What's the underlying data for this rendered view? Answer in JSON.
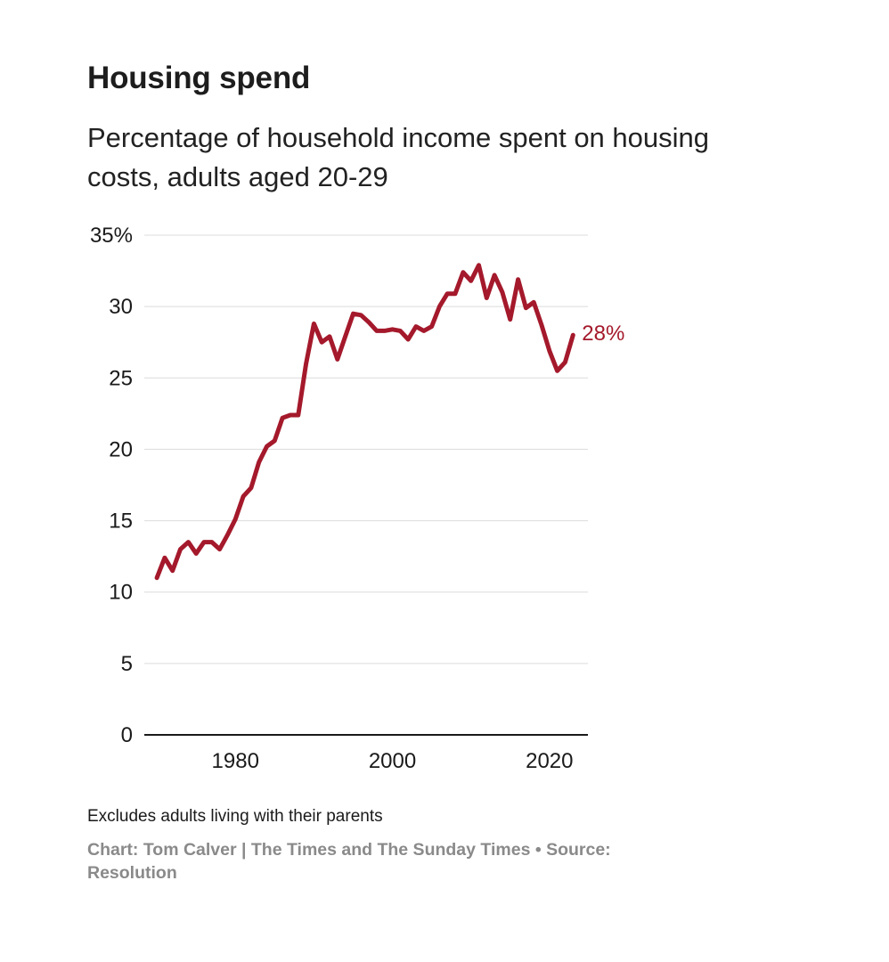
{
  "header": {
    "title": "Housing spend",
    "subtitle": "Percentage of household income spent on housing costs, adults aged 20-29"
  },
  "footer": {
    "note": "Excludes adults living with their parents",
    "credit": "Chart: Tom Calver | The Times and The Sunday Times • Source: Resolution"
  },
  "chart_data": {
    "type": "line",
    "title": "Housing spend",
    "subtitle": "Percentage of household income spent on housing costs, adults aged 20-29",
    "xlabel": "",
    "ylabel": "",
    "xlim": [
      1968.4,
      2024.9
    ],
    "ylim": [
      0,
      35
    ],
    "x_ticks": [
      1980,
      2000,
      2020
    ],
    "x_tick_labels": [
      "1980",
      "2000",
      "2020"
    ],
    "y_ticks": [
      0,
      5,
      10,
      15,
      20,
      25,
      30,
      35
    ],
    "y_tick_labels": [
      "0",
      "5",
      "10",
      "15",
      "20",
      "25",
      "30",
      "35%"
    ],
    "grid": true,
    "line_color": "#a4192b",
    "end_label": "28%",
    "series": [
      {
        "name": "Housing costs share of income, adults aged 20-29",
        "x": [
          1970,
          1971,
          1972,
          1973,
          1974,
          1975,
          1976,
          1977,
          1978,
          1979,
          1980,
          1981,
          1982,
          1983,
          1984,
          1985,
          1986,
          1987,
          1988,
          1989,
          1990,
          1991,
          1992,
          1993,
          1994,
          1995,
          1996,
          1997,
          1998,
          1999,
          2000,
          2001,
          2002,
          2003,
          2004,
          2005,
          2006,
          2007,
          2008,
          2009,
          2010,
          2011,
          2012,
          2013,
          2014,
          2015,
          2016,
          2017,
          2018,
          2019,
          2020,
          2021,
          2022,
          2023
        ],
        "values": [
          11.0,
          12.4,
          11.5,
          13.0,
          13.5,
          12.7,
          13.5,
          13.5,
          13.0,
          14.0,
          15.1,
          16.7,
          17.3,
          19.1,
          20.2,
          20.6,
          22.2,
          22.4,
          22.4,
          26.0,
          28.8,
          27.5,
          27.9,
          26.3,
          27.9,
          29.5,
          29.4,
          28.9,
          28.3,
          28.3,
          28.4,
          28.3,
          27.7,
          28.6,
          28.3,
          28.6,
          30.0,
          30.9,
          30.9,
          32.4,
          31.8,
          32.9,
          30.6,
          32.2,
          31.0,
          29.1,
          31.9,
          29.9,
          30.3,
          28.7,
          26.9,
          25.5,
          26.1,
          28.0
        ]
      }
    ]
  }
}
